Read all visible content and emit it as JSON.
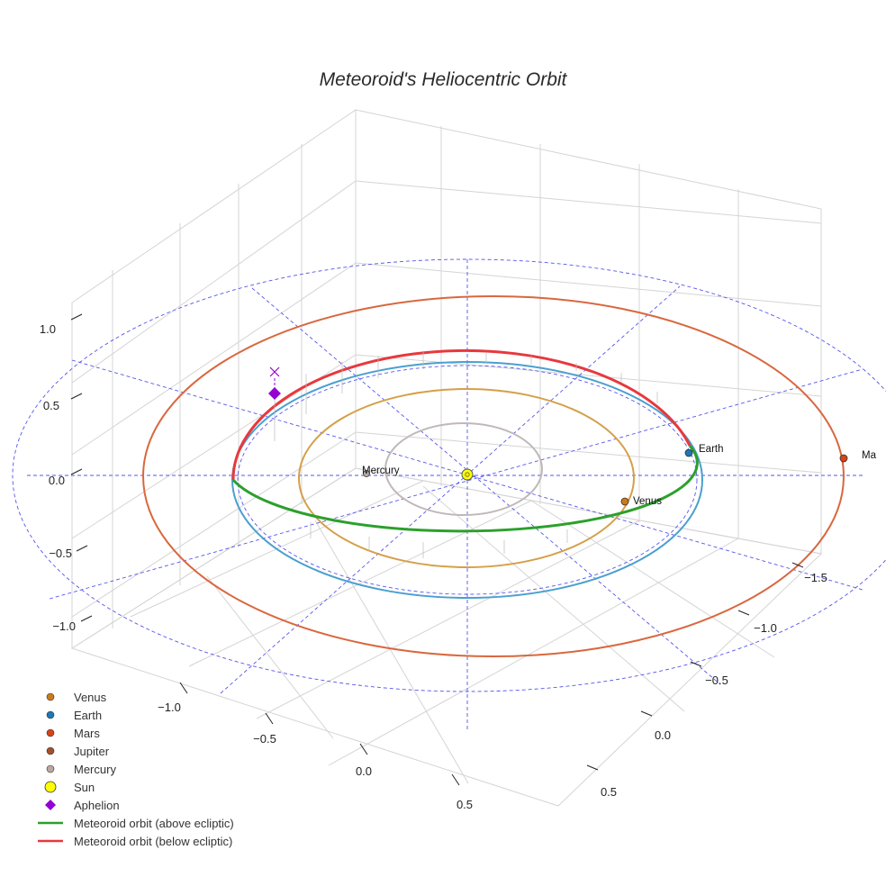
{
  "chart_data": {
    "type": "scatter",
    "title": "Meteoroid's Heliocentric Orbit",
    "projection": "3d",
    "z_ticks": [
      "1.0",
      "0.5",
      "0.0",
      "−0.5",
      "−1.0"
    ],
    "x_ticks": [
      "−1.0",
      "−0.5",
      "0.0",
      "0.5"
    ],
    "y_ticks": [
      "−1.5",
      "−1.0",
      "−0.5",
      "0.0",
      "0.5"
    ],
    "planet_orbits": [
      {
        "name": "Mercury",
        "radius_au": 0.39,
        "color": "#c0b8b8"
      },
      {
        "name": "Venus",
        "radius_au": 0.72,
        "color": "#d4a04a"
      },
      {
        "name": "Earth",
        "radius_au": 1.0,
        "color": "#4a9fd0"
      },
      {
        "name": "Mars",
        "radius_au": 1.52,
        "color": "#d9673e"
      }
    ],
    "planets": [
      {
        "name": "Venus",
        "label": "Venus",
        "color": "#cc7a1e"
      },
      {
        "name": "Earth",
        "label": "Earth",
        "color": "#1f77b4"
      },
      {
        "name": "Mars",
        "label": "Ma",
        "color": "#d44419"
      },
      {
        "name": "Mercury",
        "label": "Mercury",
        "color": "#b8a8a0"
      }
    ],
    "meteoroid_orbit": {
      "above_color": "#2ca02c",
      "below_color": "#e8383d"
    },
    "aphelion": {
      "color": "#9400d3"
    },
    "sun": {
      "color": "#ffff00"
    },
    "ecliptic_grid_color": "#5555ee",
    "legend": [
      {
        "label": "Venus",
        "marker": "circle",
        "color": "#cc7a1e"
      },
      {
        "label": "Earth",
        "marker": "circle",
        "color": "#1f77b4"
      },
      {
        "label": "Mars",
        "marker": "circle",
        "color": "#d44419"
      },
      {
        "label": "Jupiter",
        "marker": "circle",
        "color": "#a0522d"
      },
      {
        "label": "Mercury",
        "marker": "circle",
        "color": "#b8a8a0"
      },
      {
        "label": "Sun",
        "marker": "big-circle",
        "color": "#ffff00"
      },
      {
        "label": "Aphelion",
        "marker": "diamond",
        "color": "#9400d3"
      },
      {
        "label": "Meteoroid orbit (above ecliptic)",
        "marker": "line",
        "color": "#2ca02c"
      },
      {
        "label": "Meteoroid orbit (below ecliptic)",
        "marker": "line",
        "color": "#e8383d"
      }
    ],
    "legend_position": "bottom-left",
    "grid": true
  }
}
